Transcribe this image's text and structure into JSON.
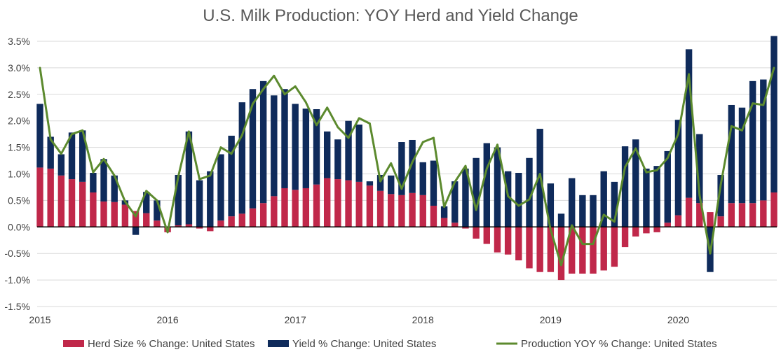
{
  "chart_data": {
    "type": "bar",
    "title": "U.S. Milk Production: YOY Herd and Yield Change",
    "xlabel": "",
    "ylabel": "",
    "ylim": [
      -1.5,
      3.5
    ],
    "y_ticks": [
      -1.5,
      -1.0,
      -0.5,
      0.0,
      0.5,
      1.0,
      1.5,
      2.0,
      2.5,
      3.0,
      3.5
    ],
    "y_tick_labels": [
      "-1.5%",
      "-1.0%",
      "-0.5%",
      "0.0%",
      "0.5%",
      "1.0%",
      "1.5%",
      "2.0%",
      "2.5%",
      "3.0%",
      "3.5%"
    ],
    "x_tick_labels": [
      "2015",
      "2016",
      "2017",
      "2018",
      "2019",
      "2020"
    ],
    "grid": true,
    "legend_position": "bottom",
    "stacked": true,
    "colors": {
      "herd": "#C0284A",
      "yield": "#0F2B5B",
      "production": "#5C8A2E",
      "grid": "#D9D9D9",
      "zero_line": "#000000"
    },
    "series": [
      {
        "name": "Herd Size % Change: United States",
        "kind": "bar",
        "values": [
          1.12,
          1.1,
          0.97,
          0.9,
          0.85,
          0.65,
          0.48,
          0.47,
          0.42,
          0.3,
          0.26,
          0.12,
          -0.1,
          0.03,
          0.05,
          -0.03,
          -0.08,
          0.12,
          0.2,
          0.25,
          0.35,
          0.45,
          0.58,
          0.73,
          0.7,
          0.73,
          0.8,
          0.92,
          0.9,
          0.88,
          0.85,
          0.78,
          0.68,
          0.62,
          0.6,
          0.64,
          0.6,
          0.4,
          0.17,
          0.08,
          -0.03,
          -0.22,
          -0.32,
          -0.48,
          -0.52,
          -0.63,
          -0.78,
          -0.85,
          -0.85,
          -1.0,
          -0.88,
          -0.88,
          -0.88,
          -0.82,
          -0.75,
          -0.38,
          -0.18,
          -0.12,
          -0.1,
          0.08,
          0.22,
          0.55,
          0.45,
          0.28,
          0.2,
          0.45,
          0.45,
          0.45,
          0.5,
          0.65
        ]
      },
      {
        "name": "Yield % Change: United States",
        "kind": "bar",
        "values": [
          1.2,
          0.6,
          0.4,
          0.88,
          0.97,
          0.37,
          0.8,
          0.5,
          0.08,
          -0.15,
          0.4,
          0.38,
          0.0,
          0.95,
          1.75,
          0.88,
          1.05,
          1.25,
          1.52,
          2.1,
          2.25,
          2.3,
          1.9,
          1.87,
          1.62,
          1.5,
          1.42,
          0.88,
          0.75,
          1.12,
          1.08,
          0.08,
          0.3,
          0.35,
          1.0,
          1.0,
          0.62,
          0.85,
          0.22,
          0.78,
          1.1,
          1.3,
          1.58,
          1.5,
          1.05,
          1.02,
          1.3,
          1.85,
          0.82,
          0.25,
          0.92,
          0.6,
          0.6,
          1.05,
          0.85,
          1.52,
          1.65,
          1.1,
          1.15,
          1.35,
          1.8,
          2.8,
          1.3,
          -0.85,
          0.78,
          1.85,
          1.8,
          2.3,
          2.28,
          2.95
        ]
      },
      {
        "name": "Production YOY % Change: United States",
        "kind": "line",
        "values": [
          3.0,
          1.65,
          1.38,
          1.75,
          1.82,
          1.03,
          1.28,
          0.97,
          0.48,
          0.2,
          0.68,
          0.5,
          -0.1,
          0.95,
          1.8,
          0.9,
          0.97,
          1.5,
          1.38,
          1.73,
          2.32,
          2.6,
          2.85,
          2.5,
          2.65,
          2.35,
          1.92,
          2.25,
          1.88,
          1.68,
          2.05,
          1.95,
          0.86,
          1.2,
          0.72,
          1.22,
          1.6,
          1.68,
          0.38,
          0.85,
          1.15,
          0.32,
          1.1,
          1.55,
          0.58,
          0.4,
          0.52,
          1.0,
          -0.05,
          -0.72,
          0.03,
          -0.32,
          -0.32,
          0.23,
          0.1,
          1.13,
          1.48,
          1.03,
          1.07,
          1.3,
          1.75,
          2.88,
          0.6,
          -0.5,
          0.8,
          1.9,
          1.82,
          2.33,
          2.3,
          3.0
        ]
      }
    ]
  }
}
